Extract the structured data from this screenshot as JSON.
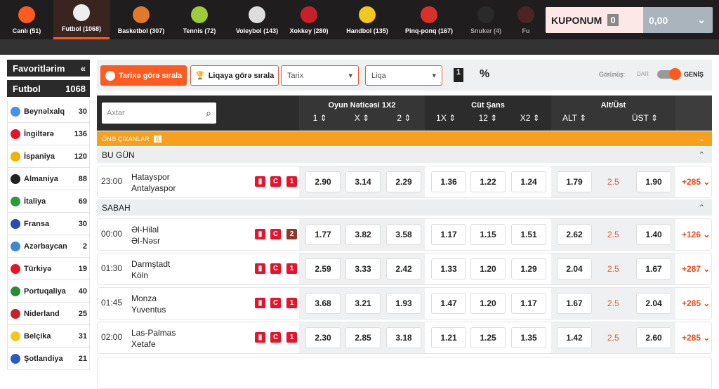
{
  "sports": [
    {
      "label": "Canlı (51)",
      "icon": "stopwatch-icon",
      "color": "#ff5a1f"
    },
    {
      "label": "Futbol (1068)",
      "icon": "soccer-ball-icon",
      "color": "#eee",
      "active": true
    },
    {
      "label": "Basketbol (307)",
      "icon": "basketball-icon",
      "color": "#e07a2a"
    },
    {
      "label": "Tennis (72)",
      "icon": "tennis-ball-icon",
      "color": "#9ccc3a"
    },
    {
      "label": "Voleybol (143)",
      "icon": "volleyball-icon",
      "color": "#ddd"
    },
    {
      "label": "Xokkey (280)",
      "icon": "ice-skate-icon",
      "color": "#c8202a"
    },
    {
      "label": "Handbol (135)",
      "icon": "handball-icon",
      "color": "#f2c81e"
    },
    {
      "label": "Pinq-ponq (167)",
      "icon": "ping-pong-icon",
      "color": "#d9302a"
    },
    {
      "label": "Snuker (4)",
      "icon": "snooker-ball-icon",
      "color": "#333"
    },
    {
      "label": "Fu",
      "icon": "futsal-icon",
      "color": "#6a2a2a"
    }
  ],
  "coupon": {
    "label": "KUPONUM",
    "count": "0",
    "amount": "0,00"
  },
  "sidebar": {
    "favorites": "Favoritlərim",
    "sport": "Futbol",
    "sport_count": "1068",
    "items": [
      {
        "label": "Beynəlxalq",
        "count": "30",
        "color": "#4a90e2"
      },
      {
        "label": "İngiltərə",
        "count": "136",
        "color": "#e8132b"
      },
      {
        "label": "İspaniya",
        "count": "120",
        "color": "#f2b200"
      },
      {
        "label": "Almaniya",
        "count": "88",
        "color": "#222"
      },
      {
        "label": "İtaliya",
        "count": "69",
        "color": "#2a9a3a"
      },
      {
        "label": "Fransa",
        "count": "30",
        "color": "#2a4ab0"
      },
      {
        "label": "Azərbaycan",
        "count": "2",
        "color": "#3a8ad0"
      },
      {
        "label": "Türkiyə",
        "count": "19",
        "color": "#e8132b"
      },
      {
        "label": "Portuqaliya",
        "count": "40",
        "color": "#2a8a3a"
      },
      {
        "label": "Niderland",
        "count": "25",
        "color": "#c8202a"
      },
      {
        "label": "Belçika",
        "count": "31",
        "color": "#f2c81e"
      },
      {
        "label": "Şotlandiya",
        "count": "21",
        "color": "#2a5ac8"
      }
    ]
  },
  "toolbar": {
    "sort_date": "Tarixə görə sırala",
    "sort_league": "Liqaya görə sırala",
    "date_select": "Tarix",
    "league_select": "Liqa",
    "mms_label": "1",
    "percent": "%",
    "view_label": "Görünüş:",
    "narrow": "DAR",
    "wide": "GENİŞ",
    "view_wide": true
  },
  "table": {
    "search_placeholder": "Axtar",
    "groups": [
      {
        "title": "Oyun Nəticəsi 1X2",
        "cols": [
          "1 ⇕",
          "X ⇕",
          "2 ⇕"
        ]
      },
      {
        "title": "Cüt Şans",
        "cols": [
          "1X ⇕",
          "12 ⇕",
          "X2 ⇕"
        ]
      },
      {
        "title": "Alt/Üst",
        "cols": [
          "ALT ⇕",
          "ÜST ⇕"
        ]
      }
    ],
    "featured": "ÖNƏ ÇIXANLAR",
    "featured_count": "6"
  },
  "days": [
    {
      "label": "BU GÜN",
      "matches": [
        {
          "time": "23:00",
          "home": "Hatayspor",
          "away": "Antalyaspor",
          "badge": "1",
          "odds": [
            "2.90",
            "3.14",
            "2.29",
            "1.36",
            "1.22",
            "1.24",
            "1.79",
            "2.5",
            "1.90"
          ],
          "more": "+285"
        }
      ]
    },
    {
      "label": "SABAH",
      "matches": [
        {
          "time": "00:00",
          "home": "Əl-Hilal",
          "away": "Əl-Nəsr",
          "badge": "2",
          "odds": [
            "1.77",
            "3.82",
            "3.58",
            "1.17",
            "1.15",
            "1.51",
            "2.62",
            "2.5",
            "1.40"
          ],
          "more": "+126"
        },
        {
          "time": "01:30",
          "home": "Darmştadt",
          "away": "Köln",
          "badge": "1",
          "odds": [
            "2.59",
            "3.33",
            "2.42",
            "1.33",
            "1.20",
            "1.29",
            "2.04",
            "2.5",
            "1.67"
          ],
          "more": "+287"
        },
        {
          "time": "01:45",
          "home": "Monza",
          "away": "Yuventus",
          "badge": "1",
          "odds": [
            "3.68",
            "3.21",
            "1.93",
            "1.47",
            "1.20",
            "1.17",
            "1.67",
            "2.5",
            "2.04"
          ],
          "more": "+285"
        },
        {
          "time": "02:00",
          "home": "Las-Palmas",
          "away": "Xetafe",
          "badge": "1",
          "odds": [
            "2.30",
            "2.85",
            "3.18",
            "1.21",
            "1.25",
            "1.35",
            "1.42",
            "2.5",
            "2.60"
          ],
          "more": "+285"
        }
      ]
    }
  ]
}
